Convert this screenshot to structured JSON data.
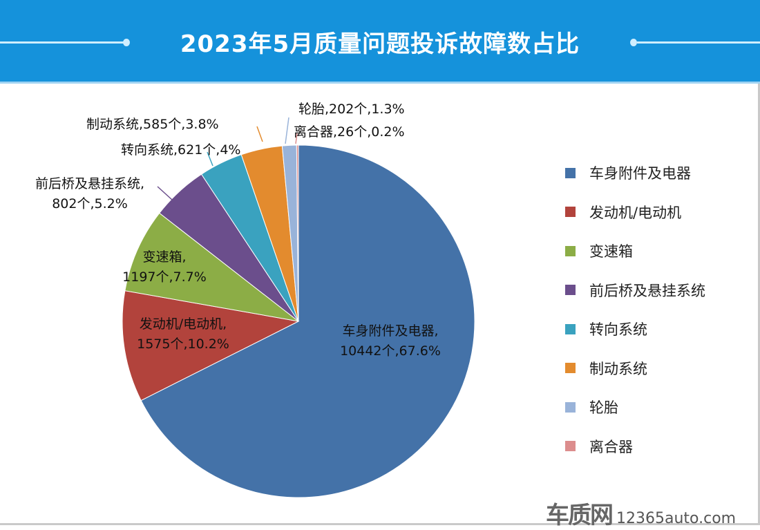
{
  "chart_data": {
    "type": "pie",
    "title": "2023年5月质量问题投诉故障数占比",
    "legend_position": "right",
    "slices": [
      {
        "name": "车身附件及电器",
        "value": 10442,
        "percent": "67.6%",
        "color": "#4472a8"
      },
      {
        "name": "发动机/电动机",
        "value": 1575,
        "percent": "10.2%",
        "color": "#b2433c"
      },
      {
        "name": "变速箱",
        "value": 1197,
        "percent": "7.7%",
        "color": "#8cad46"
      },
      {
        "name": "前后桥及悬挂系统",
        "value": 802,
        "percent": "5.2%",
        "color": "#6b4e8c"
      },
      {
        "name": "转向系统",
        "value": 621,
        "percent": "4%",
        "color": "#3aa2bf"
      },
      {
        "name": "制动系统",
        "value": 585,
        "percent": "3.8%",
        "color": "#e38b2e"
      },
      {
        "name": "轮胎",
        "value": 202,
        "percent": "1.3%",
        "color": "#99b3d9"
      },
      {
        "name": "离合器",
        "value": 26,
        "percent": "0.2%",
        "color": "#dc8d8d"
      }
    ],
    "data_labels": [
      [
        "车身附件及电器,",
        "10442个,67.6%"
      ],
      [
        "发动机/电动机,",
        "1575个,10.2%"
      ],
      [
        "变速箱,",
        "1197个,7.7%"
      ],
      [
        "前后桥及悬挂系统,",
        "802个,5.2%"
      ],
      [
        "转向系统,621个,4%"
      ],
      [
        "制动系统,585个,3.8%"
      ],
      [
        "轮胎,202个,1.3%"
      ],
      [
        "离合器,26个,0.2%"
      ]
    ]
  },
  "watermark": {
    "logo": "车质网",
    "url": "12365auto.com"
  }
}
